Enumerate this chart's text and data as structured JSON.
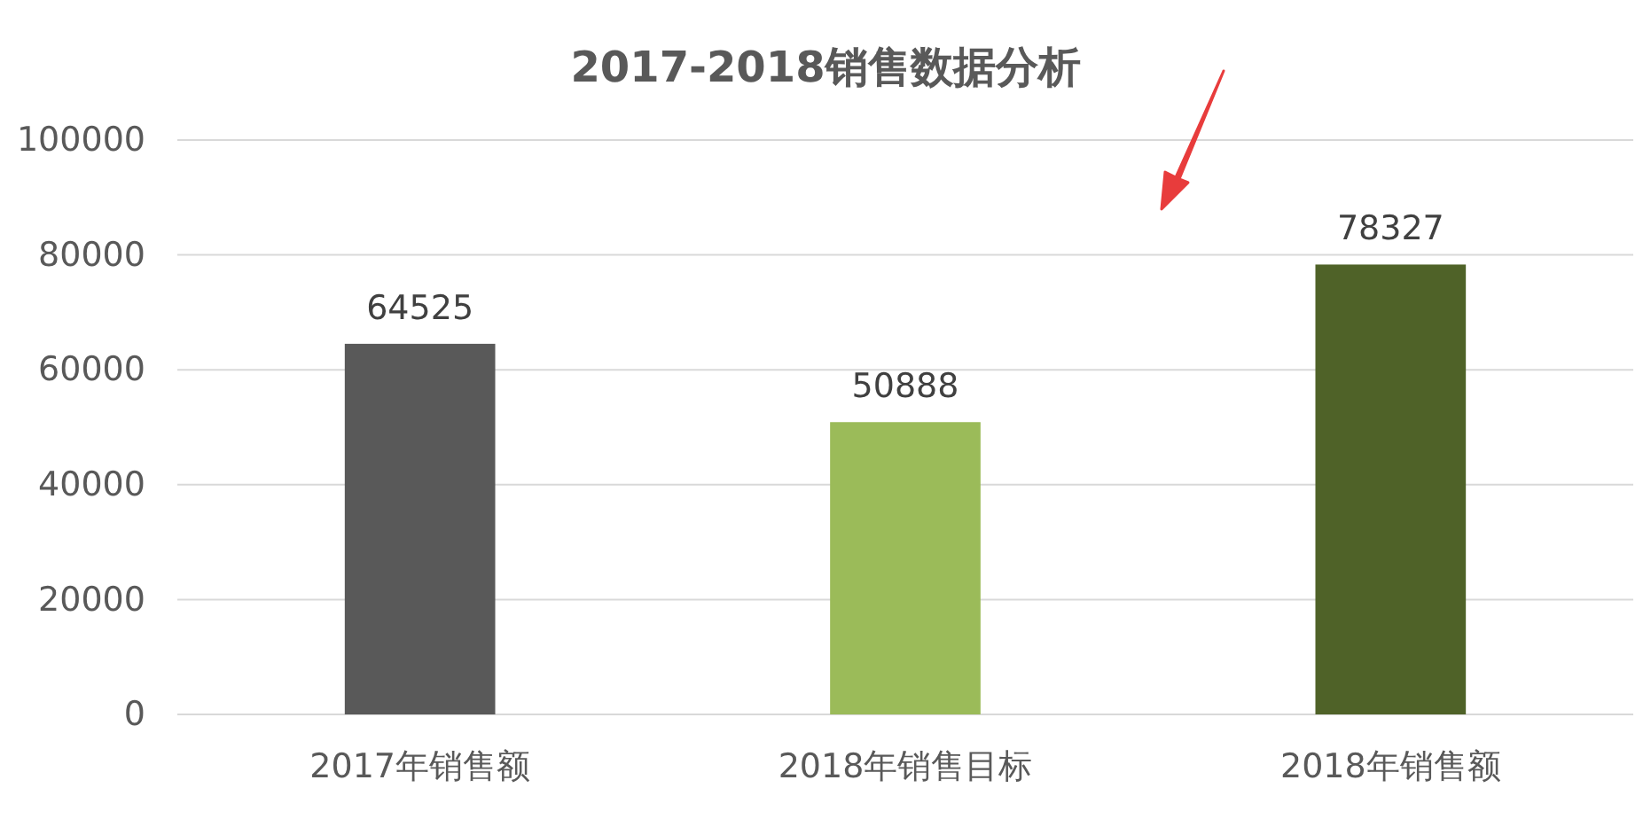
{
  "chart_data": {
    "type": "bar",
    "title": "2017-2018销售数据分析",
    "categories": [
      "2017年销售额",
      "2018年销售目标",
      "2018年销售额"
    ],
    "values": [
      64525,
      50888,
      78327
    ],
    "colors": [
      "#595959",
      "#9bbb59",
      "#4f6228"
    ],
    "ylim": [
      0,
      100000
    ],
    "yticks": [
      0,
      20000,
      40000,
      60000,
      80000,
      100000
    ],
    "grid": "y",
    "data_labels": true
  }
}
